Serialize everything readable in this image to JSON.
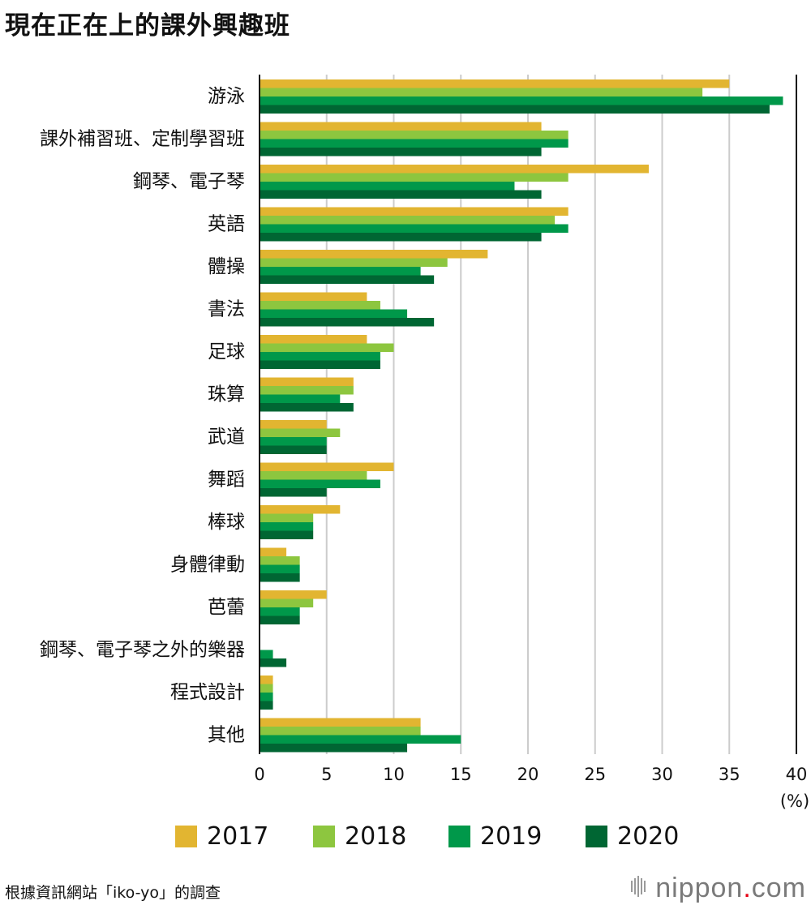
{
  "title": "現在正在上的課外興趣班",
  "source": "根據資訊網站「iko-yo」的調查",
  "brand": {
    "name": "nippon",
    "dot": ".",
    "tld": "com"
  },
  "legend_colors": [
    "#e2b531",
    "#8dc63f",
    "#00984a",
    "#006633"
  ],
  "chart_data": {
    "type": "bar",
    "orientation": "horizontal",
    "title": "現在正在上的課外興趣班",
    "xlabel": "(%)",
    "ylabel": "",
    "xlim": [
      0,
      40
    ],
    "xticks": [
      0,
      5,
      10,
      15,
      20,
      25,
      30,
      35,
      40
    ],
    "grid": true,
    "legend_position": "bottom",
    "categories": [
      "游泳",
      "課外補習班、定制學習班",
      "鋼琴、電子琴",
      "英語",
      "體操",
      "書法",
      "足球",
      "珠算",
      "武道",
      "舞蹈",
      "棒球",
      "身體律動",
      "芭蕾",
      "鋼琴、電子琴之外的樂器",
      "程式設計",
      "其他"
    ],
    "series": [
      {
        "name": "2017",
        "color": "#e2b531",
        "values": [
          35,
          21,
          29,
          23,
          17,
          8,
          8,
          7,
          5,
          10,
          6,
          2,
          5,
          0,
          1,
          12
        ]
      },
      {
        "name": "2018",
        "color": "#8dc63f",
        "values": [
          33,
          23,
          23,
          22,
          14,
          9,
          10,
          7,
          6,
          8,
          4,
          3,
          4,
          0,
          1,
          12
        ]
      },
      {
        "name": "2019",
        "color": "#00984a",
        "values": [
          39,
          23,
          19,
          23,
          12,
          11,
          9,
          6,
          5,
          9,
          4,
          3,
          3,
          1,
          1,
          15
        ]
      },
      {
        "name": "2020",
        "color": "#006633",
        "values": [
          38,
          21,
          21,
          21,
          13,
          13,
          9,
          7,
          5,
          5,
          4,
          3,
          3,
          2,
          1,
          11
        ]
      }
    ]
  }
}
